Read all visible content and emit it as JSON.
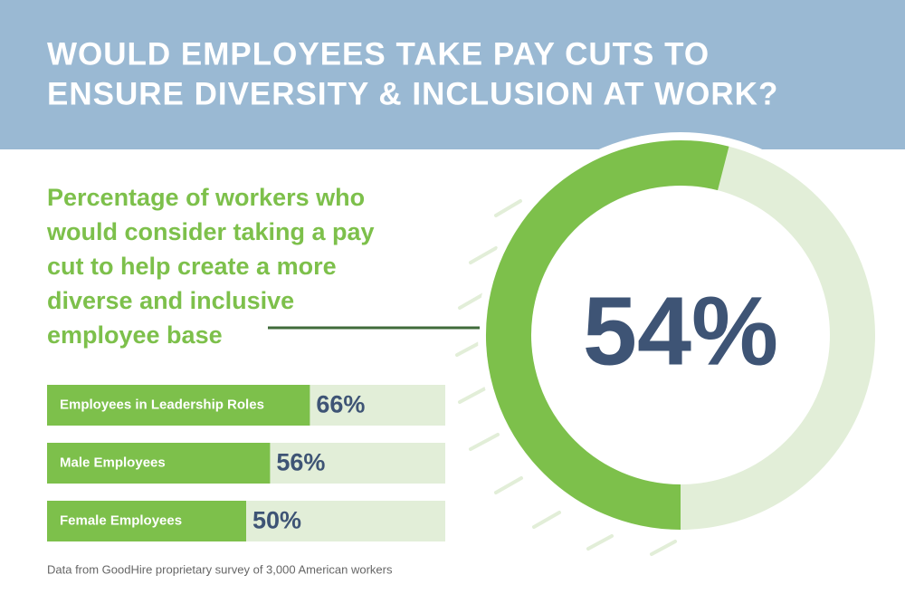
{
  "title": [
    "WOULD EMPLOYEES TAKE PAY CUTS TO",
    "ENSURE DIVERSITY & INCLUSION AT WORK?"
  ],
  "chart_data": [
    {
      "type": "donut",
      "subtitle": [
        "Percentage of workers who",
        "would consider taking a pay",
        "cut to help create a more",
        "diverse and inclusive",
        "employee base"
      ],
      "values": [
        54
      ],
      "value_labels": [
        "54%"
      ],
      "color": "#7dc04b",
      "track_color": "#e2eed8",
      "label_color": "#3e5475"
    },
    {
      "type": "hbar",
      "categories": [
        "Employees in Leadership Roles",
        "Male Employees",
        "Female Employees"
      ],
      "values": [
        66,
        56,
        50
      ],
      "value_labels": [
        "66%",
        "56%",
        "50%"
      ],
      "xlim": [
        0,
        100
      ],
      "color": "#7dc04b",
      "track_color": "#e2eed8",
      "label_color": "#3e5475"
    }
  ],
  "source": "Data from GoodHire proprietary survey of 3,000 American workers"
}
